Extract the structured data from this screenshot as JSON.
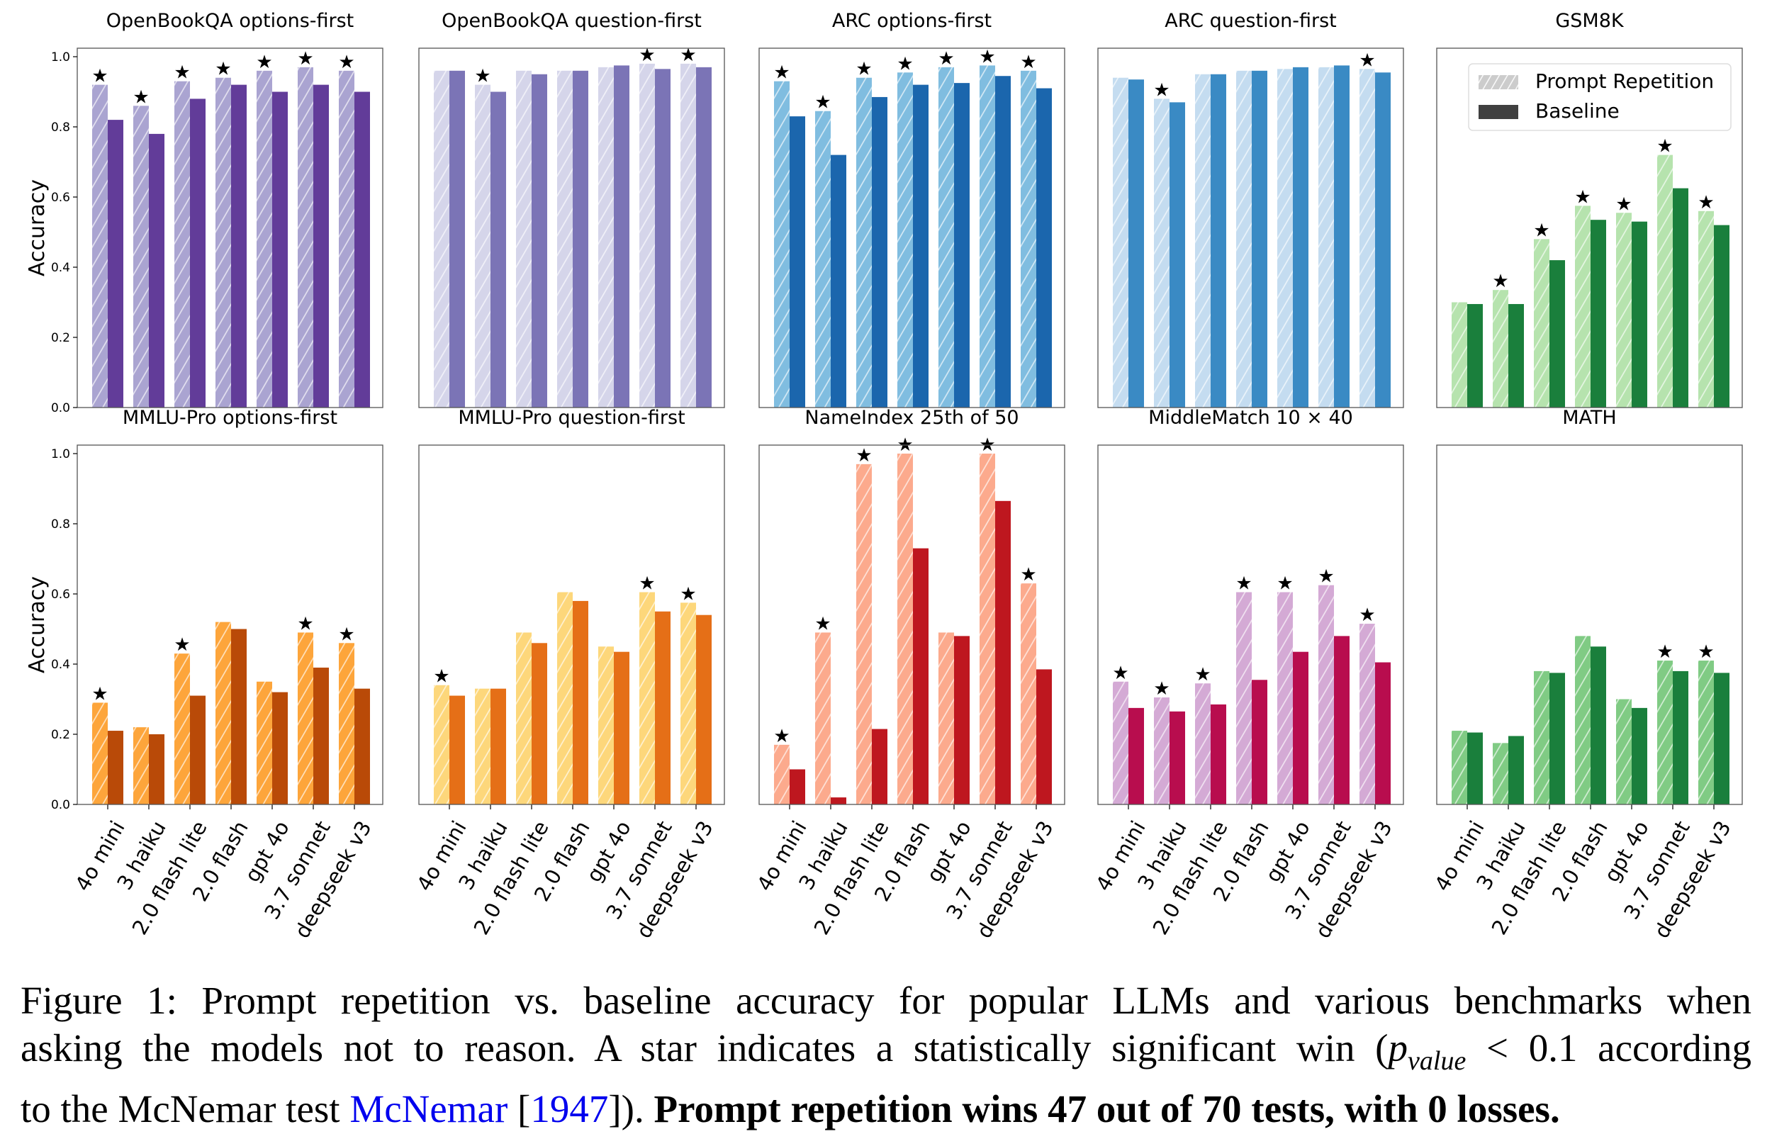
{
  "chart_data": [
    {
      "type": "bar",
      "title": "OpenBookQA options-first",
      "ylabel": "Accuracy",
      "ylim": [
        0,
        1.02
      ],
      "grid": false,
      "categories": [
        "4o mini",
        "3 haiku",
        "2.0 flash lite",
        "2.0 flash",
        "gpt 4o",
        "3.7 sonnet",
        "deepseek v3"
      ],
      "series": [
        {
          "name": "Prompt Repetition",
          "values": [
            0.92,
            0.86,
            0.93,
            0.94,
            0.96,
            0.97,
            0.96
          ]
        },
        {
          "name": "Baseline",
          "values": [
            0.82,
            0.78,
            0.88,
            0.92,
            0.9,
            0.92,
            0.9
          ]
        }
      ],
      "significant": [
        true,
        true,
        true,
        true,
        true,
        true,
        true
      ],
      "colors": {
        "repetition": "#aaa4d1",
        "baseline": "#623c99"
      }
    },
    {
      "type": "bar",
      "title": "OpenBookQA question-first",
      "ylabel": "",
      "ylim": [
        0,
        1.02
      ],
      "grid": false,
      "categories": [
        "4o mini",
        "3 haiku",
        "2.0 flash lite",
        "2.0 flash",
        "gpt 4o",
        "3.7 sonnet",
        "deepseek v3"
      ],
      "series": [
        {
          "name": "Prompt Repetition",
          "values": [
            0.96,
            0.92,
            0.96,
            0.96,
            0.97,
            0.98,
            0.98
          ]
        },
        {
          "name": "Baseline",
          "values": [
            0.96,
            0.9,
            0.95,
            0.96,
            0.975,
            0.965,
            0.97
          ]
        }
      ],
      "significant": [
        false,
        true,
        false,
        false,
        false,
        true,
        true
      ],
      "colors": {
        "repetition": "#d5d5ea",
        "baseline": "#7b74b6"
      }
    },
    {
      "type": "bar",
      "title": "ARC options-first",
      "ylabel": "",
      "ylim": [
        0,
        1.02
      ],
      "grid": false,
      "categories": [
        "4o mini",
        "3 haiku",
        "2.0 flash lite",
        "2.0 flash",
        "gpt 4o",
        "3.7 sonnet",
        "deepseek v3"
      ],
      "series": [
        {
          "name": "Prompt Repetition",
          "values": [
            0.93,
            0.845,
            0.94,
            0.955,
            0.97,
            0.975,
            0.96
          ]
        },
        {
          "name": "Baseline",
          "values": [
            0.83,
            0.72,
            0.885,
            0.92,
            0.925,
            0.945,
            0.91
          ]
        }
      ],
      "significant": [
        true,
        true,
        true,
        true,
        true,
        true,
        true
      ],
      "colors": {
        "repetition": "#80bde0",
        "baseline": "#1b66ad"
      }
    },
    {
      "type": "bar",
      "title": "ARC question-first",
      "ylabel": "",
      "ylim": [
        0,
        1.02
      ],
      "grid": false,
      "categories": [
        "4o mini",
        "3 haiku",
        "2.0 flash lite",
        "2.0 flash",
        "gpt 4o",
        "3.7 sonnet",
        "deepseek v3"
      ],
      "series": [
        {
          "name": "Prompt Repetition",
          "values": [
            0.94,
            0.88,
            0.95,
            0.96,
            0.965,
            0.97,
            0.965
          ]
        },
        {
          "name": "Baseline",
          "values": [
            0.935,
            0.87,
            0.95,
            0.96,
            0.97,
            0.975,
            0.955
          ]
        }
      ],
      "significant": [
        false,
        true,
        false,
        false,
        false,
        false,
        true
      ],
      "colors": {
        "repetition": "#c4dcf0",
        "baseline": "#3a8ac4"
      }
    },
    {
      "type": "bar",
      "title": "GSM8K",
      "ylabel": "",
      "ylim": [
        0,
        1.02
      ],
      "grid": false,
      "legend": "top-right",
      "categories": [
        "4o mini",
        "3 haiku",
        "2.0 flash lite",
        "2.0 flash",
        "gpt 4o",
        "3.7 sonnet",
        "deepseek v3"
      ],
      "series": [
        {
          "name": "Prompt Repetition",
          "values": [
            0.3,
            0.335,
            0.48,
            0.575,
            0.555,
            0.72,
            0.56
          ]
        },
        {
          "name": "Baseline",
          "values": [
            0.295,
            0.295,
            0.42,
            0.535,
            0.53,
            0.625,
            0.52
          ]
        }
      ],
      "significant": [
        false,
        true,
        true,
        true,
        true,
        true,
        true
      ],
      "colors": {
        "repetition": "#b6e3ae",
        "baseline": "#1a7f3c"
      }
    },
    {
      "type": "bar",
      "title": "MMLU-Pro options-first",
      "ylabel": "Accuracy",
      "ylim": [
        0,
        1.02
      ],
      "grid": false,
      "categories": [
        "4o mini",
        "3 haiku",
        "2.0 flash lite",
        "2.0 flash",
        "gpt 4o",
        "3.7 sonnet",
        "deepseek v3"
      ],
      "series": [
        {
          "name": "Prompt Repetition",
          "values": [
            0.29,
            0.22,
            0.43,
            0.52,
            0.35,
            0.49,
            0.46
          ]
        },
        {
          "name": "Baseline",
          "values": [
            0.21,
            0.2,
            0.31,
            0.5,
            0.32,
            0.39,
            0.33
          ]
        }
      ],
      "significant": [
        true,
        false,
        true,
        false,
        false,
        true,
        true
      ],
      "colors": {
        "repetition": "#fda53b",
        "baseline": "#b94a08"
      }
    },
    {
      "type": "bar",
      "title": "MMLU-Pro question-first",
      "ylabel": "",
      "ylim": [
        0,
        1.02
      ],
      "grid": false,
      "categories": [
        "4o mini",
        "3 haiku",
        "2.0 flash lite",
        "2.0 flash",
        "gpt 4o",
        "3.7 sonnet",
        "deepseek v3"
      ],
      "series": [
        {
          "name": "Prompt Repetition",
          "values": [
            0.34,
            0.33,
            0.49,
            0.605,
            0.45,
            0.605,
            0.575
          ]
        },
        {
          "name": "Baseline",
          "values": [
            0.31,
            0.33,
            0.46,
            0.58,
            0.435,
            0.55,
            0.54
          ]
        }
      ],
      "significant": [
        true,
        false,
        false,
        false,
        false,
        true,
        true
      ],
      "colors": {
        "repetition": "#fdd77b",
        "baseline": "#e56f17"
      }
    },
    {
      "type": "bar",
      "title": "NameIndex 25th of 50",
      "ylabel": "",
      "ylim": [
        0,
        1.02
      ],
      "grid": false,
      "categories": [
        "4o mini",
        "3 haiku",
        "2.0 flash lite",
        "2.0 flash",
        "gpt 4o",
        "3.7 sonnet",
        "deepseek v3"
      ],
      "series": [
        {
          "name": "Prompt Repetition",
          "values": [
            0.17,
            0.49,
            0.97,
            1.0,
            0.49,
            1.0,
            0.63
          ]
        },
        {
          "name": "Baseline",
          "values": [
            0.1,
            0.02,
            0.215,
            0.73,
            0.48,
            0.865,
            0.385
          ]
        }
      ],
      "significant": [
        true,
        true,
        true,
        true,
        false,
        true,
        true
      ],
      "colors": {
        "repetition": "#fcaa8d",
        "baseline": "#be171f"
      }
    },
    {
      "type": "bar",
      "title": "MiddleMatch 10 × 40",
      "ylabel": "",
      "ylim": [
        0,
        1.02
      ],
      "grid": false,
      "categories": [
        "4o mini",
        "3 haiku",
        "2.0 flash lite",
        "2.0 flash",
        "gpt 4o",
        "3.7 sonnet",
        "deepseek v3"
      ],
      "series": [
        {
          "name": "Prompt Repetition",
          "values": [
            0.35,
            0.305,
            0.345,
            0.605,
            0.605,
            0.625,
            0.515
          ]
        },
        {
          "name": "Baseline",
          "values": [
            0.275,
            0.265,
            0.285,
            0.355,
            0.435,
            0.48,
            0.405
          ]
        }
      ],
      "significant": [
        true,
        true,
        true,
        true,
        true,
        true,
        true
      ],
      "colors": {
        "repetition": "#d4aad5",
        "baseline": "#b80d4e"
      }
    },
    {
      "type": "bar",
      "title": "MATH",
      "ylabel": "",
      "ylim": [
        0,
        1.02
      ],
      "grid": false,
      "categories": [
        "4o mini",
        "3 haiku",
        "2.0 flash lite",
        "2.0 flash",
        "gpt 4o",
        "3.7 sonnet",
        "deepseek v3"
      ],
      "series": [
        {
          "name": "Prompt Repetition",
          "values": [
            0.21,
            0.175,
            0.38,
            0.48,
            0.3,
            0.41,
            0.41
          ]
        },
        {
          "name": "Baseline",
          "values": [
            0.205,
            0.195,
            0.375,
            0.45,
            0.275,
            0.38,
            0.375
          ]
        }
      ],
      "significant": [
        false,
        false,
        false,
        false,
        false,
        true,
        true
      ],
      "colors": {
        "repetition": "#80cb84",
        "baseline": "#1a7f3c"
      }
    }
  ],
  "yticks": [
    "0.0",
    "0.2",
    "0.4",
    "0.6",
    "0.8",
    "1.0"
  ],
  "legend": {
    "items": [
      "Prompt Repetition",
      "Baseline"
    ],
    "colors": [
      "#cccccc",
      "#404040"
    ]
  },
  "star_glyph": "★",
  "caption": {
    "line1": "Figure 1: Prompt repetition vs. baseline accuracy for popular LLMs and various benchmarks when",
    "line2_a": "asking the models not to reason. A star indicates a statistically significant win (",
    "p_symbol": "p",
    "p_sub": "value",
    "line2_b": " < 0.1 according",
    "line3_a": "to the McNemar test ",
    "cite_author": "McNemar",
    "cite_open": " [",
    "cite_year": "1947",
    "cite_close": "]). ",
    "bold": "Prompt repetition wins 47 out of 70 tests, with 0 losses."
  }
}
